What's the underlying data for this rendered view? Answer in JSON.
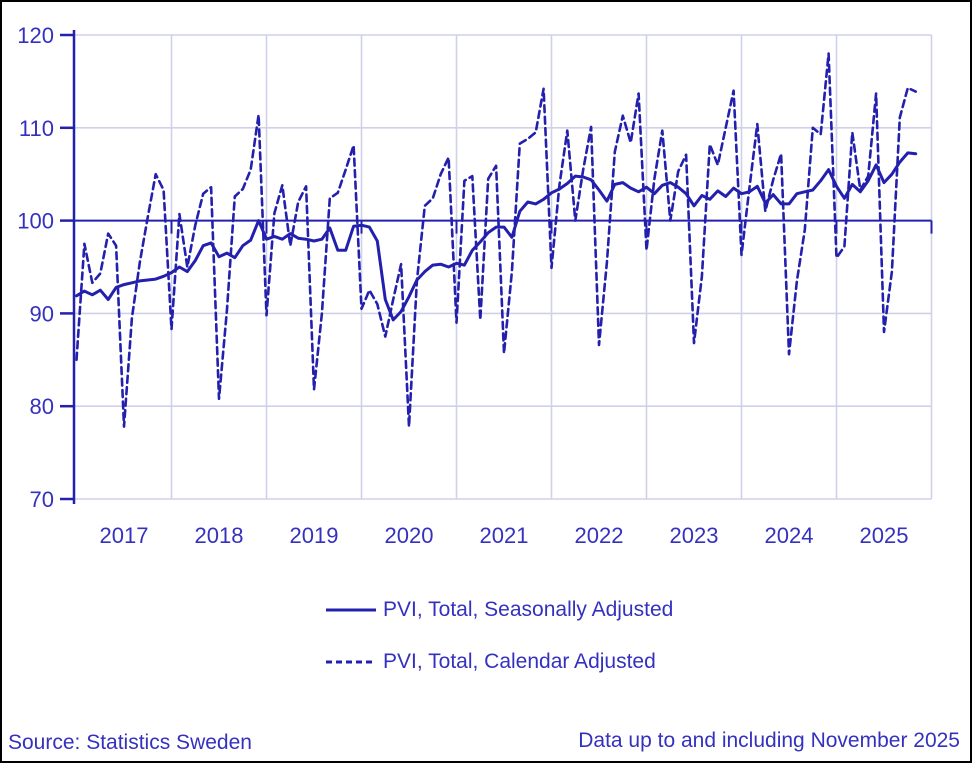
{
  "colors": {
    "series_line": "#2420ae",
    "label_text": "#3531bf",
    "gridline": "#d0d0ea",
    "reference_line": "#2420ae",
    "background": "#ffffff",
    "frame_border": "#000000"
  },
  "footer": {
    "source": "Source: Statistics Sweden",
    "note": "Data up to and including November 2025"
  },
  "chart_data": {
    "type": "line",
    "title": "",
    "xlabel": "",
    "ylabel": "",
    "x_unit": "month",
    "start_month": "2017-01",
    "end_month": "2025-11",
    "ylim": [
      70,
      120
    ],
    "y_ticks": [
      70,
      80,
      90,
      100,
      110,
      120
    ],
    "reference_line_value": 100,
    "grid": true,
    "legend_position": "bottom-center",
    "year_labels": [
      "2017",
      "2018",
      "2019",
      "2020",
      "2021",
      "2022",
      "2023",
      "2024",
      "2025"
    ],
    "series": [
      {
        "name": "PVI, Total, Seasonally Adjusted",
        "style": "solid",
        "values": [
          91.9,
          92.4,
          92.0,
          92.5,
          91.5,
          92.8,
          93.1,
          93.3,
          93.5,
          93.6,
          93.7,
          94.0,
          94.4,
          95.0,
          94.5,
          95.7,
          97.3,
          97.6,
          96.1,
          96.5,
          96.0,
          97.3,
          97.9,
          100.0,
          98.0,
          98.3,
          98.0,
          98.6,
          98.1,
          98.0,
          97.8,
          98.0,
          99.2,
          96.8,
          96.8,
          99.4,
          99.5,
          99.3,
          97.8,
          91.5,
          89.3,
          90.2,
          91.8,
          93.6,
          94.5,
          95.2,
          95.3,
          95.0,
          95.4,
          95.2,
          96.8,
          97.7,
          98.7,
          99.3,
          99.3,
          98.2,
          101.0,
          102.0,
          101.8,
          102.3,
          103.0,
          103.4,
          104.0,
          104.8,
          104.7,
          104.4,
          103.3,
          102.1,
          103.9,
          104.1,
          103.5,
          103.1,
          103.6,
          102.9,
          103.8,
          104.1,
          103.6,
          102.9,
          101.6,
          102.7,
          102.3,
          103.2,
          102.6,
          103.5,
          102.9,
          103.1,
          103.7,
          101.9,
          102.8,
          101.8,
          101.8,
          102.9,
          103.1,
          103.3,
          104.3,
          105.5,
          103.7,
          102.4,
          103.9,
          103.1,
          104.3,
          106.0,
          104.1,
          105.0,
          106.3,
          107.3,
          107.2
        ]
      },
      {
        "name": "PVI, Total, Calendar Adjusted",
        "style": "dashed",
        "values": [
          85.0,
          97.5,
          93.3,
          94.3,
          98.6,
          97.3,
          77.8,
          89.5,
          95.5,
          100.4,
          105.0,
          103.3,
          88.3,
          100.7,
          95.0,
          99.5,
          102.9,
          103.6,
          80.8,
          90.3,
          102.6,
          103.4,
          105.5,
          111.4,
          89.8,
          100.8,
          103.8,
          97.3,
          102.0,
          103.7,
          81.8,
          90.0,
          102.4,
          103.0,
          105.5,
          108.1,
          90.5,
          92.5,
          91.0,
          87.5,
          91.5,
          95.3,
          77.8,
          93.5,
          101.6,
          102.4,
          105.0,
          106.8,
          89.0,
          104.3,
          104.8,
          89.3,
          104.5,
          105.9,
          85.7,
          94.5,
          108.3,
          108.8,
          109.5,
          114.2,
          94.9,
          103.8,
          109.7,
          100.0,
          105.5,
          110.1,
          86.6,
          95.5,
          107.4,
          111.3,
          108.4,
          113.7,
          96.8,
          104.5,
          109.7,
          100.0,
          105.3,
          107.1,
          86.8,
          94.0,
          108.2,
          106.0,
          110.0,
          114.0,
          96.3,
          103.5,
          110.4,
          101.0,
          104.4,
          107.2,
          85.6,
          93.5,
          99.0,
          110.0,
          109.3,
          118.0,
          96.0,
          97.2,
          109.5,
          103.3,
          104.8,
          113.7,
          88.0,
          94.5,
          111.1,
          114.3,
          113.9
        ]
      }
    ]
  }
}
